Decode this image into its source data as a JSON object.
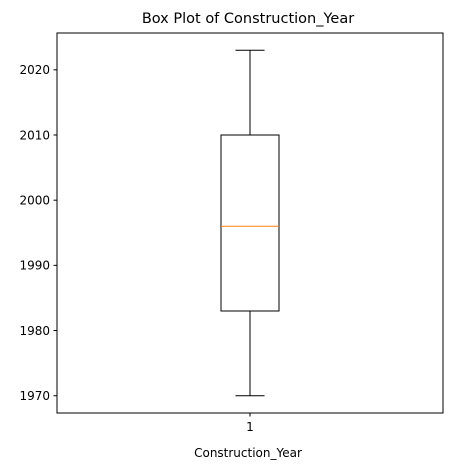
{
  "chart_data": {
    "type": "box",
    "title": "Box Plot of Construction_Year",
    "xlabel": "Construction_Year",
    "ylabel": "",
    "categories": [
      "1"
    ],
    "ylim": [
      1967.35,
      2025.65
    ],
    "yticks": [
      1970,
      1980,
      1990,
      2000,
      2010,
      2020
    ],
    "box": {
      "whisker_low": 1970,
      "q1": 1983,
      "median": 1996,
      "q3": 2010,
      "whisker_high": 2023
    },
    "grid": false,
    "colors": {
      "box": "#000000",
      "median": "#ff7f0e"
    }
  }
}
